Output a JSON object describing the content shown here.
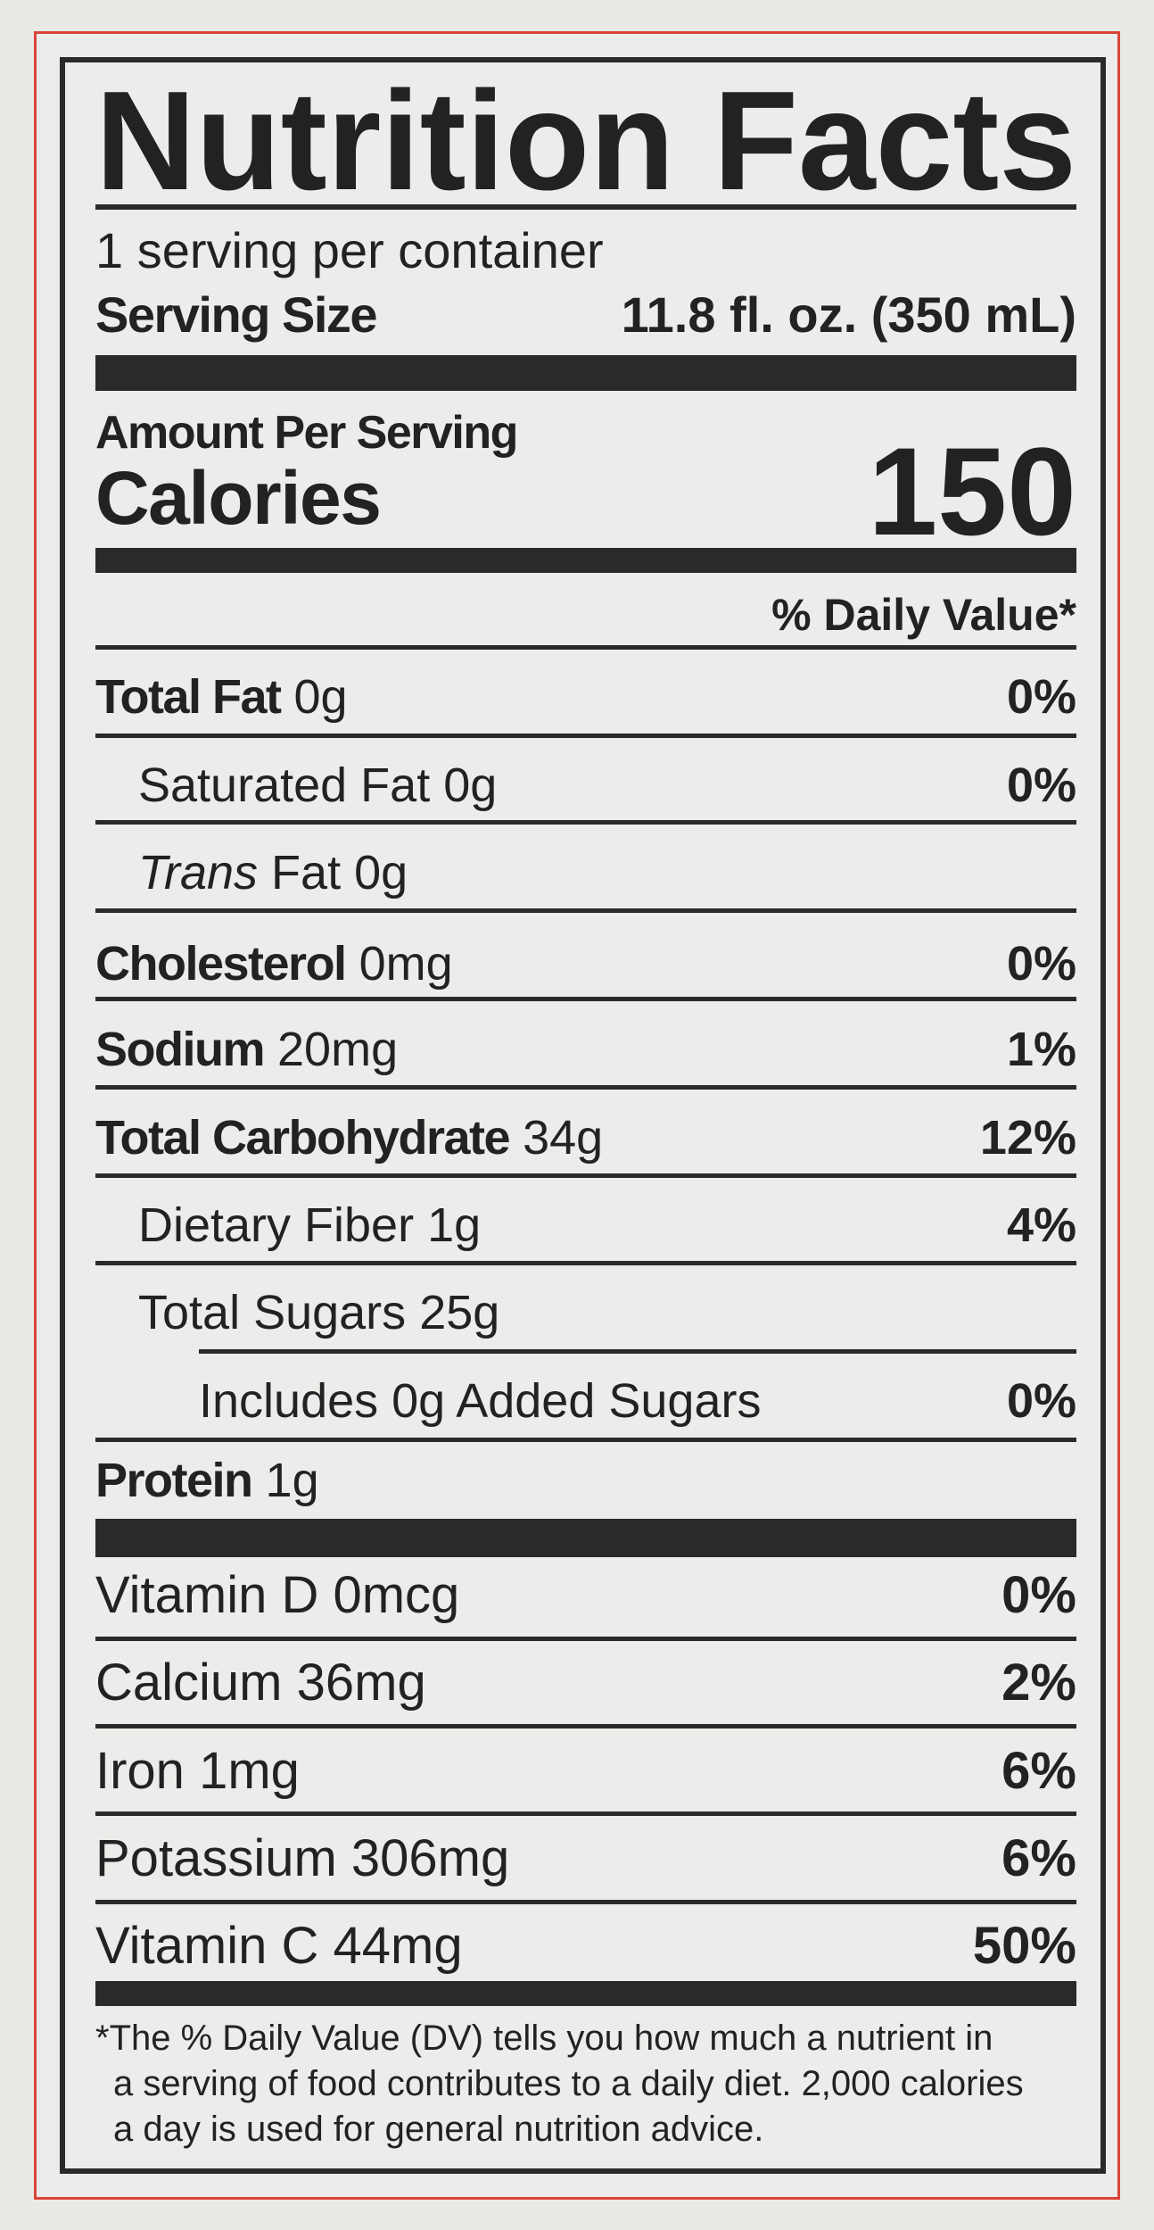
{
  "title": "Nutrition Facts",
  "servings": "1 serving per container",
  "serving_size": {
    "label": "Serving Size",
    "value": "11.8 fl. oz. (350 mL)"
  },
  "amount_per_serving": "Amount Per Serving",
  "calories": {
    "label": "Calories",
    "value": "150"
  },
  "dv_header": "% Daily Value*",
  "nutrients": [
    {
      "name": "Total Fat",
      "amount": "0g",
      "dv": "0%"
    },
    {
      "name": "Saturated Fat",
      "amount": "0g",
      "dv": "0%"
    },
    {
      "name_italic": "Trans",
      "name": "Fat",
      "amount": "0g"
    },
    {
      "name": "Cholesterol",
      "amount": "0mg",
      "dv": "0%"
    },
    {
      "name": "Sodium",
      "amount": "20mg",
      "dv": "1%"
    },
    {
      "name": "Total Carbohydrate",
      "amount": "34g",
      "dv": "12%"
    },
    {
      "name": "Dietary Fiber",
      "amount": "1g",
      "dv": "4%"
    },
    {
      "name": "Total Sugars",
      "amount": "25g"
    },
    {
      "name": "Includes 0g Added Sugars",
      "dv": "0%"
    },
    {
      "name": "Protein",
      "amount": "1g"
    }
  ],
  "vitamins": [
    {
      "name": "Vitamin D",
      "amount": "0mcg",
      "dv": "0%"
    },
    {
      "name": "Calcium",
      "amount": "36mg",
      "dv": "2%"
    },
    {
      "name": "Iron",
      "amount": "1mg",
      "dv": "6%"
    },
    {
      "name": "Potassium",
      "amount": "306mg",
      "dv": "6%"
    },
    {
      "name": "Vitamin C",
      "amount": "44mg",
      "dv": "50%"
    }
  ],
  "footnote": [
    "*The % Daily Value (DV) tells you how much a nutrient in",
    "a serving of food contributes to a daily diet. 2,000 calories",
    "a day is used for general nutrition advice."
  ]
}
